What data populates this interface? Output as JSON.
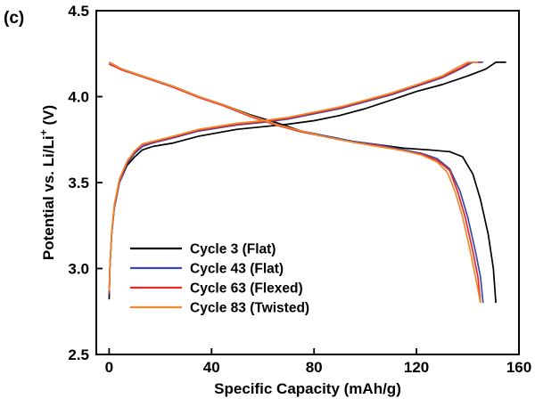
{
  "panel_label": "(c)",
  "chart_data": {
    "type": "line",
    "title": "",
    "xlabel": "Specific Capacity (mAh/g)",
    "ylabel_main": "Potential vs. Li/Li",
    "ylabel_sup": "+",
    "ylabel_unit": " (V)",
    "xlim": [
      -5,
      160
    ],
    "ylim": [
      2.5,
      4.5
    ],
    "x_ticks": [
      0,
      40,
      80,
      120,
      160
    ],
    "y_ticks": [
      2.5,
      3.0,
      3.5,
      4.0,
      4.5
    ],
    "x_tick_labels": [
      "0",
      "40",
      "80",
      "120",
      "160"
    ],
    "y_tick_labels": [
      "2.5",
      "3.0",
      "3.5",
      "4.0",
      "4.5"
    ],
    "grid": false,
    "legend_position": "bottom-left",
    "series": [
      {
        "name": "Cycle 3 (Flat)",
        "color": "#000000",
        "charge": [
          [
            0,
            2.82
          ],
          [
            0.3,
            3.0
          ],
          [
            1,
            3.2
          ],
          [
            2,
            3.35
          ],
          [
            4,
            3.5
          ],
          [
            7,
            3.6
          ],
          [
            10,
            3.65
          ],
          [
            13,
            3.69
          ],
          [
            17,
            3.71
          ],
          [
            25,
            3.73
          ],
          [
            35,
            3.77
          ],
          [
            50,
            3.81
          ],
          [
            60,
            3.825
          ],
          [
            70,
            3.84
          ],
          [
            80,
            3.86
          ],
          [
            90,
            3.89
          ],
          [
            100,
            3.93
          ],
          [
            110,
            3.98
          ],
          [
            120,
            4.03
          ],
          [
            130,
            4.07
          ],
          [
            140,
            4.12
          ],
          [
            147,
            4.16
          ],
          [
            151,
            4.2
          ],
          [
            155,
            4.2
          ]
        ],
        "discharge": [
          [
            0,
            4.2
          ],
          [
            5,
            4.16
          ],
          [
            15,
            4.11
          ],
          [
            25,
            4.06
          ],
          [
            35,
            4.0
          ],
          [
            45,
            3.95
          ],
          [
            55,
            3.895
          ],
          [
            65,
            3.85
          ],
          [
            75,
            3.8
          ],
          [
            85,
            3.77
          ],
          [
            95,
            3.74
          ],
          [
            105,
            3.72
          ],
          [
            115,
            3.7
          ],
          [
            125,
            3.69
          ],
          [
            133,
            3.68
          ],
          [
            138,
            3.65
          ],
          [
            142,
            3.55
          ],
          [
            145,
            3.4
          ],
          [
            148,
            3.2
          ],
          [
            150,
            3.0
          ],
          [
            151,
            2.8
          ]
        ]
      },
      {
        "name": "Cycle 43 (Flat)",
        "color": "#3b4aa3",
        "charge": [
          [
            0,
            2.85
          ],
          [
            0.3,
            3.0
          ],
          [
            1,
            3.2
          ],
          [
            2,
            3.35
          ],
          [
            4,
            3.5
          ],
          [
            7,
            3.61
          ],
          [
            10,
            3.67
          ],
          [
            13,
            3.71
          ],
          [
            17,
            3.73
          ],
          [
            25,
            3.76
          ],
          [
            35,
            3.8
          ],
          [
            50,
            3.835
          ],
          [
            60,
            3.85
          ],
          [
            70,
            3.87
          ],
          [
            80,
            3.9
          ],
          [
            90,
            3.93
          ],
          [
            100,
            3.97
          ],
          [
            110,
            4.01
          ],
          [
            120,
            4.06
          ],
          [
            130,
            4.11
          ],
          [
            137,
            4.16
          ],
          [
            142,
            4.2
          ],
          [
            146,
            4.2
          ]
        ],
        "discharge": [
          [
            0,
            4.19
          ],
          [
            5,
            4.16
          ],
          [
            15,
            4.11
          ],
          [
            25,
            4.06
          ],
          [
            35,
            4.0
          ],
          [
            45,
            3.95
          ],
          [
            55,
            3.89
          ],
          [
            65,
            3.84
          ],
          [
            75,
            3.8
          ],
          [
            85,
            3.77
          ],
          [
            95,
            3.74
          ],
          [
            105,
            3.72
          ],
          [
            115,
            3.69
          ],
          [
            122,
            3.67
          ],
          [
            128,
            3.64
          ],
          [
            133,
            3.58
          ],
          [
            137,
            3.45
          ],
          [
            140,
            3.3
          ],
          [
            143,
            3.1
          ],
          [
            145,
            2.95
          ],
          [
            146,
            2.8
          ]
        ]
      },
      {
        "name": "Cycle 63 (Flexed)",
        "color": "#e8282a",
        "charge": [
          [
            0,
            2.86
          ],
          [
            0.3,
            3.0
          ],
          [
            1,
            3.2
          ],
          [
            2,
            3.36
          ],
          [
            4,
            3.51
          ],
          [
            7,
            3.62
          ],
          [
            10,
            3.68
          ],
          [
            13,
            3.72
          ],
          [
            17,
            3.735
          ],
          [
            25,
            3.765
          ],
          [
            35,
            3.805
          ],
          [
            50,
            3.84
          ],
          [
            60,
            3.855
          ],
          [
            70,
            3.875
          ],
          [
            80,
            3.905
          ],
          [
            90,
            3.935
          ],
          [
            100,
            3.975
          ],
          [
            110,
            4.015
          ],
          [
            120,
            4.065
          ],
          [
            130,
            4.115
          ],
          [
            137,
            4.165
          ],
          [
            141,
            4.2
          ],
          [
            145,
            4.2
          ]
        ],
        "discharge": [
          [
            0,
            4.19
          ],
          [
            5,
            4.155
          ],
          [
            15,
            4.105
          ],
          [
            25,
            4.055
          ],
          [
            35,
            3.995
          ],
          [
            45,
            3.945
          ],
          [
            55,
            3.885
          ],
          [
            65,
            3.835
          ],
          [
            75,
            3.795
          ],
          [
            85,
            3.765
          ],
          [
            95,
            3.735
          ],
          [
            105,
            3.715
          ],
          [
            115,
            3.685
          ],
          [
            122,
            3.665
          ],
          [
            128,
            3.63
          ],
          [
            133,
            3.57
          ],
          [
            136,
            3.45
          ],
          [
            139,
            3.3
          ],
          [
            142,
            3.1
          ],
          [
            144,
            2.95
          ],
          [
            145,
            2.8
          ]
        ]
      },
      {
        "name": "Cycle 83 (Twisted)",
        "color": "#f08a2c",
        "charge": [
          [
            0,
            2.87
          ],
          [
            0.3,
            3.0
          ],
          [
            1,
            3.21
          ],
          [
            2,
            3.37
          ],
          [
            4,
            3.52
          ],
          [
            7,
            3.625
          ],
          [
            10,
            3.685
          ],
          [
            13,
            3.725
          ],
          [
            17,
            3.74
          ],
          [
            25,
            3.77
          ],
          [
            35,
            3.81
          ],
          [
            50,
            3.845
          ],
          [
            60,
            3.86
          ],
          [
            70,
            3.88
          ],
          [
            80,
            3.91
          ],
          [
            90,
            3.94
          ],
          [
            100,
            3.98
          ],
          [
            110,
            4.02
          ],
          [
            120,
            4.07
          ],
          [
            130,
            4.12
          ],
          [
            136,
            4.17
          ],
          [
            140,
            4.2
          ],
          [
            144,
            4.2
          ]
        ],
        "discharge": [
          [
            0,
            4.2
          ],
          [
            5,
            4.16
          ],
          [
            15,
            4.11
          ],
          [
            25,
            4.06
          ],
          [
            35,
            4.0
          ],
          [
            45,
            3.95
          ],
          [
            55,
            3.89
          ],
          [
            65,
            3.84
          ],
          [
            75,
            3.8
          ],
          [
            85,
            3.765
          ],
          [
            95,
            3.735
          ],
          [
            105,
            3.71
          ],
          [
            115,
            3.685
          ],
          [
            122,
            3.66
          ],
          [
            128,
            3.62
          ],
          [
            132,
            3.56
          ],
          [
            135,
            3.45
          ],
          [
            138,
            3.3
          ],
          [
            141,
            3.1
          ],
          [
            143,
            2.95
          ],
          [
            145,
            2.8
          ]
        ]
      }
    ]
  }
}
